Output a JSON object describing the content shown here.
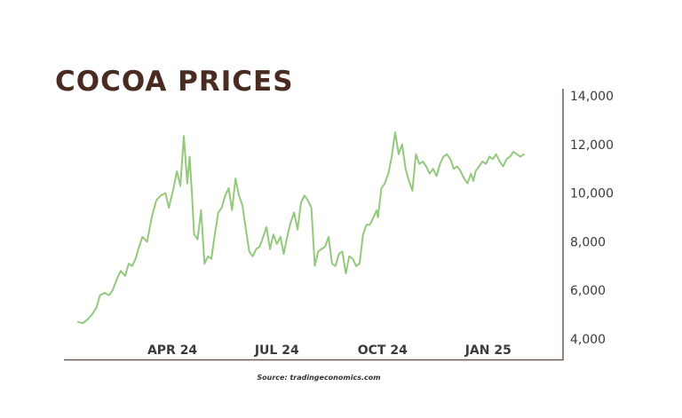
{
  "chart_data": {
    "type": "line",
    "title": "COCOA PRICES",
    "source": "Source: tradingeconomics.com",
    "xlabel": "",
    "ylabel": "",
    "ylim": [
      4000,
      14000
    ],
    "yticks": [
      4000,
      6000,
      8000,
      10000,
      12000,
      14000
    ],
    "ytick_labels": [
      "4,000",
      "6,000",
      "8,000",
      "10,000",
      "12,000",
      "14,000"
    ],
    "xticks": [
      "2024-04-01",
      "2024-07-01",
      "2024-10-01",
      "2025-01-01"
    ],
    "xtick_labels": [
      "APR 24",
      "JUL 24",
      "OCT 24",
      "JAN 25"
    ],
    "xlim": [
      "2024-01-10",
      "2025-02-15"
    ],
    "grid": false,
    "y_axis_position": "right",
    "line_color": "#93c97c",
    "series": [
      {
        "x": [
          "2024-01-10",
          "2024-01-14",
          "2024-01-18",
          "2024-01-22",
          "2024-01-26",
          "2024-01-29",
          "2024-02-02",
          "2024-02-06",
          "2024-02-09",
          "2024-02-13",
          "2024-02-16",
          "2024-02-20",
          "2024-02-23",
          "2024-02-26",
          "2024-02-29",
          "2024-03-03",
          "2024-03-06",
          "2024-03-10",
          "2024-03-14",
          "2024-03-18",
          "2024-03-22",
          "2024-03-26",
          "2024-03-29",
          "2024-04-02",
          "2024-04-05",
          "2024-04-08",
          "2024-04-11",
          "2024-04-14",
          "2024-04-16",
          "2024-04-18",
          "2024-04-20",
          "2024-04-23",
          "2024-04-26",
          "2024-04-29",
          "2024-05-02",
          "2024-05-05",
          "2024-05-08",
          "2024-05-11",
          "2024-05-14",
          "2024-05-17",
          "2024-05-20",
          "2024-05-23",
          "2024-05-26",
          "2024-05-29",
          "2024-06-01",
          "2024-06-04",
          "2024-06-07",
          "2024-06-10",
          "2024-06-13",
          "2024-06-16",
          "2024-06-19",
          "2024-06-22",
          "2024-06-25",
          "2024-06-28",
          "2024-07-01",
          "2024-07-04",
          "2024-07-07",
          "2024-07-10",
          "2024-07-13",
          "2024-07-16",
          "2024-07-19",
          "2024-07-22",
          "2024-07-25",
          "2024-07-28",
          "2024-07-31",
          "2024-08-03",
          "2024-08-06",
          "2024-08-09",
          "2024-08-12",
          "2024-08-15",
          "2024-08-18",
          "2024-08-21",
          "2024-08-24",
          "2024-08-27",
          "2024-08-30",
          "2024-09-02",
          "2024-09-05",
          "2024-09-08",
          "2024-09-11",
          "2024-09-14",
          "2024-09-17",
          "2024-09-20",
          "2024-09-23",
          "2024-09-26",
          "2024-09-27",
          "2024-09-30",
          "2024-10-03",
          "2024-10-06",
          "2024-10-09",
          "2024-10-12",
          "2024-10-15",
          "2024-10-18",
          "2024-10-21",
          "2024-10-24",
          "2024-10-27",
          "2024-10-30",
          "2024-11-02",
          "2024-11-05",
          "2024-11-08",
          "2024-11-11",
          "2024-11-14",
          "2024-11-17",
          "2024-11-20",
          "2024-11-23",
          "2024-11-26",
          "2024-11-29",
          "2024-12-02",
          "2024-12-05",
          "2024-12-08",
          "2024-12-11",
          "2024-12-14",
          "2024-12-17",
          "2024-12-19",
          "2024-12-21",
          "2024-12-24",
          "2024-12-27",
          "2024-12-30",
          "2025-01-02",
          "2025-01-05",
          "2025-01-08",
          "2025-01-11",
          "2025-01-14",
          "2025-01-17",
          "2025-01-20",
          "2025-01-23",
          "2025-01-26",
          "2025-01-29",
          "2025-02-01"
        ],
        "y": [
          4700,
          4650,
          4800,
          5000,
          5300,
          5800,
          5900,
          5800,
          6000,
          6500,
          6800,
          6600,
          7100,
          7000,
          7300,
          7800,
          8200,
          8000,
          9000,
          9700,
          9900,
          10000,
          9400,
          10200,
          10900,
          10300,
          12350,
          10400,
          11500,
          10000,
          8300,
          8100,
          9300,
          7100,
          7400,
          7300,
          8300,
          9200,
          9400,
          9900,
          10200,
          9300,
          10600,
          9900,
          9500,
          8500,
          7600,
          7400,
          7700,
          7800,
          8200,
          8600,
          7700,
          8300,
          7900,
          8200,
          7500,
          8200,
          8800,
          9200,
          8500,
          9600,
          9900,
          9700,
          9400,
          7000,
          7600,
          7700,
          7800,
          8200,
          7100,
          7000,
          7500,
          7600,
          6700,
          7400,
          7300,
          7000,
          7100,
          8300,
          8700,
          8700,
          9000,
          9300,
          9000,
          10200,
          10400,
          10800,
          11500,
          12500,
          11600,
          12000,
          11000,
          10500,
          10100,
          11600,
          11200,
          11300,
          11100,
          10800,
          11000,
          10700,
          11200,
          11500,
          11600,
          11400,
          11000,
          11100,
          10900,
          10600,
          10400,
          10800,
          10500,
          10900,
          11100,
          11300,
          11200,
          11500,
          11400,
          11600,
          11300,
          11100,
          11400,
          11500,
          11700,
          11600,
          11500,
          11600
        ]
      }
    ]
  }
}
